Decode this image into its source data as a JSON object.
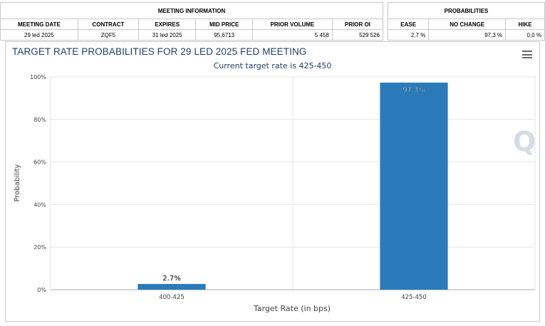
{
  "meeting_info": {
    "header": "MEETING INFORMATION",
    "columns": [
      "MEETING DATE",
      "CONTRACT",
      "EXPIRES",
      "MID PRICE",
      "PRIOR VOLUME",
      "PRIOR OI"
    ],
    "row": [
      "29 led 2025",
      "ZQF5",
      "31 led 2025",
      "95,6713",
      "5 458",
      "529 526"
    ]
  },
  "probabilities": {
    "header": "PROBABILITIES",
    "columns": [
      "EASE",
      "NO CHANGE",
      "HIKE"
    ],
    "row": [
      "2,7 %",
      "97,3 %",
      "0,0 %"
    ]
  },
  "icons": {
    "menu": "hamburger-menu-icon",
    "watermark": "Q"
  },
  "chart_data": {
    "type": "bar",
    "title": "TARGET RATE PROBABILITIES FOR 29 LED 2025 FED MEETING",
    "subtitle": "Current target rate is 425-450",
    "xlabel": "Target Rate (in bps)",
    "ylabel": "Probability",
    "categories": [
      "400-425",
      "425-450"
    ],
    "values": [
      2.7,
      97.3
    ],
    "data_labels": [
      "2.7%",
      "97.3%"
    ],
    "ylim": [
      0,
      100
    ],
    "yticks": [
      0,
      20,
      40,
      60,
      80,
      100
    ],
    "ytick_labels": [
      "0%",
      "20%",
      "40%",
      "60%",
      "80%",
      "100%"
    ],
    "grid": true,
    "bar_color": "#2b7bba"
  }
}
